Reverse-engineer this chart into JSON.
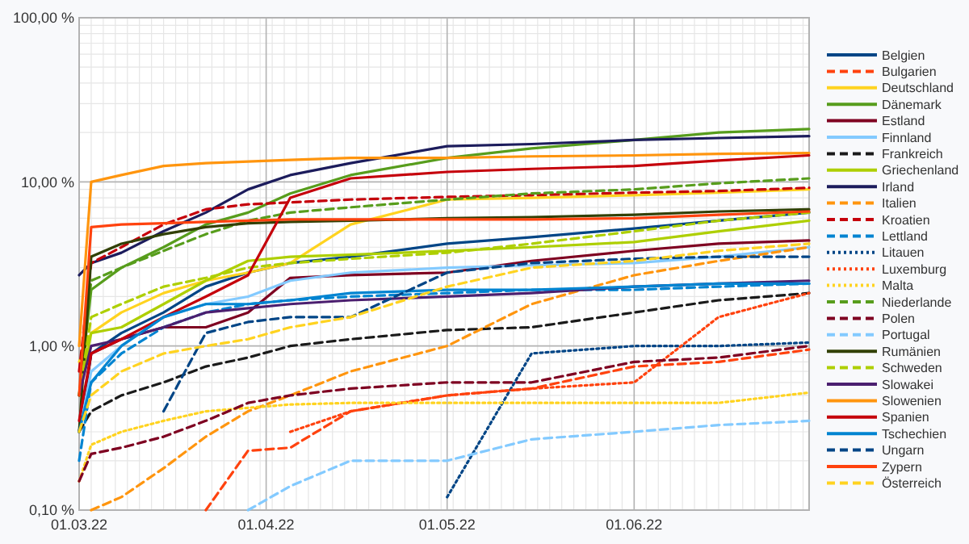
{
  "chart_data": {
    "type": "line",
    "x": [
      "2022-03-01",
      "2022-03-03",
      "2022-03-08",
      "2022-03-15",
      "2022-03-22",
      "2022-03-29",
      "2022-04-05",
      "2022-04-15",
      "2022-05-01",
      "2022-05-15",
      "2022-06-01",
      "2022-06-15",
      "2022-06-30"
    ],
    "xlim": [
      "2022-03-01",
      "2022-06-30"
    ],
    "xticks": [
      {
        "value": "2022-03-01",
        "label": "01.03.22"
      },
      {
        "value": "2022-04-01",
        "label": "01.04.22"
      },
      {
        "value": "2022-05-01",
        "label": "01.05.22"
      },
      {
        "value": "2022-06-01",
        "label": "01.06.22"
      }
    ],
    "ylim": [
      0.1,
      100
    ],
    "yticks": [
      {
        "value": 0.1,
        "label": "0,10 %"
      },
      {
        "value": 1,
        "label": "1,00 %"
      },
      {
        "value": 10,
        "label": "10,00 %"
      },
      {
        "value": 100,
        "label": "100,00 %"
      }
    ],
    "log": "y",
    "grid": true,
    "legend": "right",
    "marker": "none",
    "series": [
      {
        "name": "Belgien",
        "color": "#004586",
        "line_style": "solid",
        "values": [
          0.3,
          0.9,
          1.2,
          1.6,
          2.3,
          2.8,
          3.2,
          3.5,
          4.2,
          4.6,
          5.2,
          5.8,
          6.5
        ]
      },
      {
        "name": "Bulgarien",
        "color": "#ff420e",
        "line_style": "dashed",
        "values": [
          null,
          null,
          null,
          null,
          0.1,
          0.23,
          0.24,
          0.4,
          0.5,
          0.55,
          0.75,
          0.8,
          0.95
        ]
      },
      {
        "name": "Deutschland",
        "color": "#ffd320",
        "line_style": "solid",
        "values": [
          0.8,
          1.2,
          1.6,
          2.1,
          2.5,
          2.8,
          3.2,
          5.5,
          7.8,
          8,
          8.3,
          8.6,
          9
        ]
      },
      {
        "name": "Dänemark",
        "color": "#579d1c",
        "line_style": "solid",
        "values": [
          0.5,
          2.2,
          3,
          4,
          5.5,
          6.5,
          8.5,
          11,
          14,
          16,
          18,
          20,
          21
        ]
      },
      {
        "name": "Estland",
        "color": "#7e0021",
        "line_style": "solid",
        "values": [
          0.3,
          0.9,
          1.1,
          1.3,
          1.3,
          1.6,
          2.6,
          2.7,
          2.8,
          3.3,
          3.8,
          4.2,
          4.4
        ]
      },
      {
        "name": "Finnland",
        "color": "#83caff",
        "line_style": "solid",
        "values": [
          0.3,
          0.7,
          1,
          1.5,
          1.8,
          2,
          2.5,
          2.8,
          3,
          3.1,
          3.2,
          3.5,
          4
        ]
      },
      {
        "name": "Frankreich",
        "color": "#1a1a1a",
        "line_style": "dashed",
        "values": [
          0.3,
          0.4,
          0.5,
          0.6,
          0.75,
          0.85,
          1,
          1.1,
          1.25,
          1.3,
          1.6,
          1.9,
          2.1
        ]
      },
      {
        "name": "Griechenland",
        "color": "#aecf00",
        "line_style": "solid",
        "values": [
          0.5,
          1.2,
          1.3,
          1.8,
          2.5,
          3.3,
          3.5,
          3.6,
          3.8,
          4,
          4.3,
          5,
          5.8
        ]
      },
      {
        "name": "Irland",
        "color": "#1c1c5c",
        "line_style": "solid",
        "values": [
          2.7,
          3.2,
          3.7,
          5,
          6.5,
          9,
          11,
          13,
          16.5,
          17,
          18,
          18.5,
          19
        ]
      },
      {
        "name": "Italien",
        "color": "#ff950e",
        "line_style": "dashed",
        "values": [
          null,
          0.1,
          0.12,
          0.18,
          0.28,
          0.4,
          0.5,
          0.7,
          1,
          1.8,
          2.7,
          3.3,
          4
        ]
      },
      {
        "name": "Kroatien",
        "color": "#c5000b",
        "line_style": "dashed",
        "values": [
          0.7,
          3.2,
          4,
          5.5,
          6.8,
          7.3,
          7.5,
          7.8,
          8.1,
          8.3,
          8.6,
          8.8,
          9.2
        ]
      },
      {
        "name": "Lettland",
        "color": "#0084d1",
        "line_style": "dashed",
        "values": [
          0.2,
          0.6,
          0.9,
          1.3,
          1.6,
          1.8,
          1.9,
          2,
          2.1,
          2.2,
          2.2,
          2.3,
          2.4
        ]
      },
      {
        "name": "Litauen",
        "color": "#004586",
        "line_style": "dotted",
        "values": [
          null,
          null,
          null,
          null,
          null,
          null,
          null,
          null,
          0.12,
          0.9,
          1,
          1,
          1.05
        ]
      },
      {
        "name": "Luxemburg",
        "color": "#ff420e",
        "line_style": "dotted",
        "values": [
          null,
          null,
          null,
          null,
          null,
          null,
          0.3,
          0.4,
          0.5,
          0.55,
          0.6,
          1.5,
          2.1
        ]
      },
      {
        "name": "Malta",
        "color": "#ffd320",
        "line_style": "dotted",
        "values": [
          0.15,
          0.25,
          0.3,
          0.35,
          0.4,
          0.42,
          0.44,
          0.45,
          0.45,
          0.45,
          0.45,
          0.45,
          0.52
        ]
      },
      {
        "name": "Niederlande",
        "color": "#579d1c",
        "line_style": "dashed",
        "values": [
          0.5,
          2.5,
          3,
          3.8,
          4.8,
          5.8,
          6.5,
          7,
          7.8,
          8.5,
          9,
          9.8,
          10.5
        ]
      },
      {
        "name": "Polen",
        "color": "#7e0021",
        "line_style": "dashed",
        "values": [
          0.15,
          0.22,
          0.24,
          0.28,
          0.35,
          0.45,
          0.5,
          0.55,
          0.6,
          0.6,
          0.8,
          0.85,
          1
        ]
      },
      {
        "name": "Portugal",
        "color": "#83caff",
        "line_style": "dashed",
        "values": [
          null,
          null,
          null,
          null,
          null,
          0.1,
          0.14,
          0.2,
          0.2,
          0.27,
          0.3,
          0.33,
          0.35
        ]
      },
      {
        "name": "Rumänien",
        "color": "#314004",
        "line_style": "solid",
        "values": [
          0.3,
          3.5,
          4.2,
          4.8,
          5.3,
          5.6,
          5.7,
          5.8,
          6,
          6.1,
          6.3,
          6.6,
          6.8
        ]
      },
      {
        "name": "Schweden",
        "color": "#aecf00",
        "line_style": "dashed",
        "values": [
          0.5,
          1.5,
          1.8,
          2.3,
          2.6,
          3,
          3.2,
          3.4,
          3.7,
          4.2,
          5,
          5.8,
          6.5
        ]
      },
      {
        "name": "Slowakei",
        "color": "#4b1f6f",
        "line_style": "solid",
        "values": [
          0.5,
          1,
          1.1,
          1.3,
          1.6,
          1.7,
          1.8,
          1.9,
          2,
          2.1,
          2.3,
          2.4,
          2.5
        ]
      },
      {
        "name": "Slowenien",
        "color": "#ff950e",
        "line_style": "solid",
        "values": [
          1,
          10,
          11,
          12.5,
          13,
          13.3,
          13.6,
          14,
          14,
          14.3,
          14.5,
          14.8,
          15
        ]
      },
      {
        "name": "Spanien",
        "color": "#c5000b",
        "line_style": "solid",
        "values": [
          0.35,
          0.9,
          1.1,
          1.5,
          2,
          2.7,
          8,
          10.5,
          11.5,
          12,
          12.5,
          13.5,
          14.5
        ]
      },
      {
        "name": "Tschechien",
        "color": "#0084d1",
        "line_style": "solid",
        "values": [
          0.3,
          0.6,
          1,
          1.5,
          1.8,
          1.8,
          1.9,
          2.1,
          2.2,
          2.2,
          2.3,
          2.4,
          2.4
        ]
      },
      {
        "name": "Ungarn",
        "color": "#004586",
        "line_style": "dashed",
        "values": [
          null,
          null,
          null,
          0.4,
          1.2,
          1.4,
          1.5,
          1.5,
          2.8,
          3.2,
          3.4,
          3.5,
          3.5
        ]
      },
      {
        "name": "Zypern",
        "color": "#ff420e",
        "line_style": "solid",
        "values": [
          0.5,
          5.3,
          5.5,
          5.6,
          5.7,
          5.8,
          5.9,
          5.9,
          5.9,
          5.9,
          6,
          6.3,
          6.6
        ]
      },
      {
        "name": "Österreich",
        "color": "#ffd320",
        "line_style": "dashed",
        "values": [
          0.3,
          0.5,
          0.7,
          0.9,
          1,
          1.1,
          1.3,
          1.5,
          2.3,
          3,
          3.3,
          3.8,
          4.2
        ]
      }
    ]
  }
}
